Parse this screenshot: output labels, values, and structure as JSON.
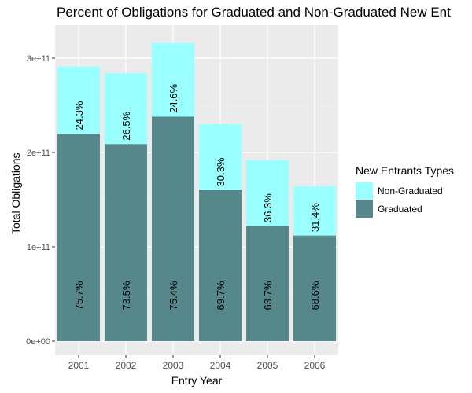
{
  "chart_data": {
    "type": "bar",
    "stacked": true,
    "title": "Percent of Obligations for Graduated and Non-Graduated New Ent",
    "xlabel": "Entry Year",
    "ylabel": "Total Obligations",
    "categories": [
      "2001",
      "2002",
      "2003",
      "2004",
      "2005",
      "2006"
    ],
    "ylim": [
      0,
      330000000000.0
    ],
    "yticks": [
      0,
      100000000000.0,
      200000000000.0,
      300000000000.0
    ],
    "ytick_labels": [
      "0e+00",
      "1e+11",
      "2e+11",
      "3e+11"
    ],
    "series": [
      {
        "name": "Graduated",
        "color": "#56878A",
        "values": [
          220000000000.0,
          209000000000.0,
          238000000000.0,
          160000000000.0,
          122000000000.0,
          112000000000.0
        ],
        "labels": [
          "75.7%",
          "73.5%",
          "75.4%",
          "69.7%",
          "63.7%",
          "68.6%"
        ]
      },
      {
        "name": "Non-Graduated",
        "color": "#99FFFF",
        "values": [
          71000000000.0,
          75000000000.0,
          78000000000.0,
          70000000000.0,
          70000000000.0,
          52000000000.0
        ],
        "labels": [
          "24.3%",
          "26.5%",
          "24.6%",
          "30.3%",
          "36.3%",
          "31.4%"
        ]
      }
    ],
    "legend_title": "New Entrants Types",
    "legend_order": [
      "Non-Graduated",
      "Graduated"
    ],
    "legend_position": "right",
    "grid": true,
    "panel_background": "#EBEBEB"
  }
}
